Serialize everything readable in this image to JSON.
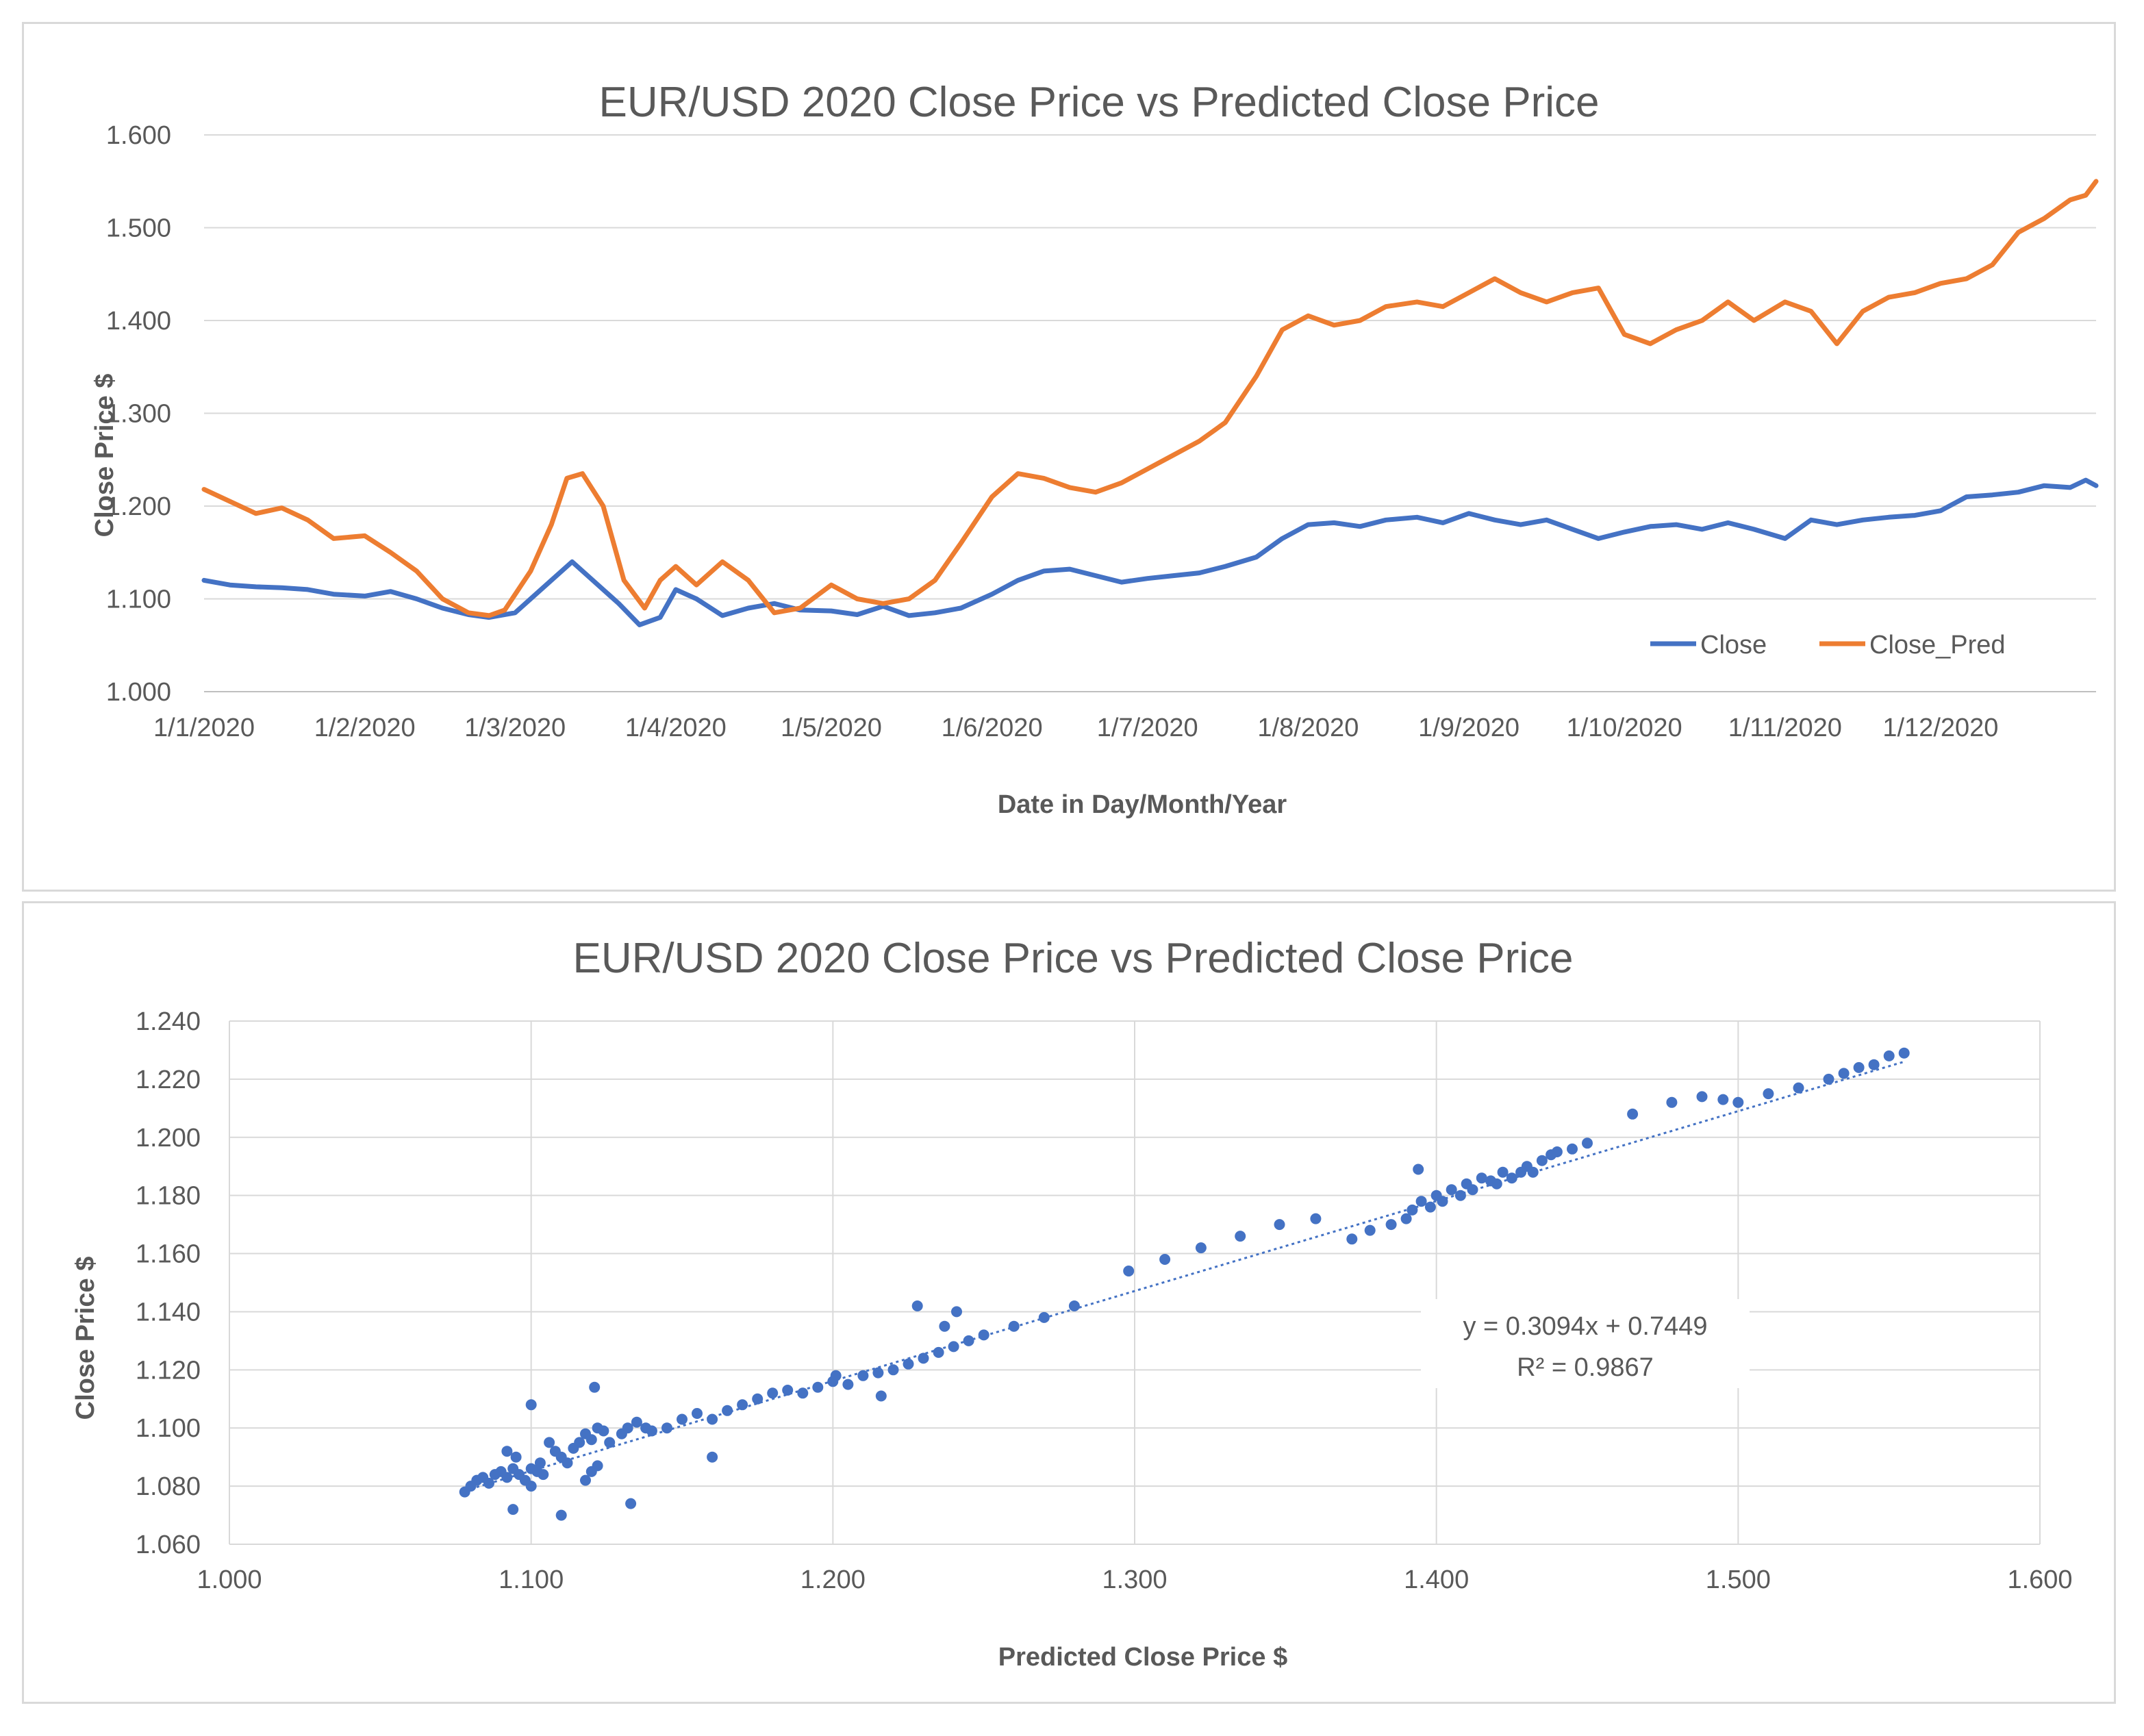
{
  "charts": [
    {
      "title": "EUR/USD 2020 Close Price vs Predicted Close Price",
      "xlabel": "Date in Day/Month/Year",
      "ylabel": "Close Price $",
      "ytick_labels": [
        "1.000",
        "1.100",
        "1.200",
        "1.300",
        "1.400",
        "1.500",
        "1.600"
      ],
      "xtick_labels": [
        "1/1/2020",
        "1/2/2020",
        "1/3/2020",
        "1/4/2020",
        "1/5/2020",
        "1/6/2020",
        "1/7/2020",
        "1/8/2020",
        "1/9/2020",
        "1/10/2020",
        "1/11/2020",
        "1/12/2020"
      ],
      "legend": [
        "Close",
        "Close_Pred"
      ]
    },
    {
      "title": "EUR/USD 2020 Close Price vs Predicted Close Price",
      "xlabel": "Predicted Close Price $",
      "ylabel": "Close Price $",
      "ytick_labels": [
        "1.060",
        "1.080",
        "1.100",
        "1.120",
        "1.140",
        "1.160",
        "1.180",
        "1.200",
        "1.220",
        "1.240"
      ],
      "xtick_labels": [
        "1.000",
        "1.100",
        "1.200",
        "1.300",
        "1.400",
        "1.500",
        "1.600"
      ],
      "equation": "y = 0.3094x + 0.7449",
      "r_squared": "R² = 0.9867"
    }
  ],
  "chart_data": [
    {
      "type": "line",
      "title": "EUR/USD 2020 Close Price vs Predicted Close Price",
      "xlabel": "Date in Day/Month/Year",
      "ylabel": "Close Price $",
      "x_range_days": [
        0,
        365
      ],
      "ylim": [
        1.0,
        1.6
      ],
      "grid": true,
      "legend_position": "bottom-right",
      "series": [
        {
          "name": "Close",
          "color": "#4472c4",
          "x": [
            0,
            5,
            10,
            15,
            20,
            25,
            31,
            36,
            41,
            46,
            51,
            55,
            60,
            63,
            67,
            71,
            76,
            80,
            84,
            88,
            91,
            95,
            100,
            105,
            110,
            115,
            121,
            126,
            131,
            136,
            141,
            146,
            152,
            157,
            162,
            167,
            172,
            177,
            182,
            187,
            192,
            197,
            203,
            208,
            213,
            218,
            223,
            228,
            234,
            239,
            244,
            249,
            254,
            259,
            264,
            269,
            274,
            279,
            284,
            289,
            294,
            299,
            305,
            310,
            315,
            320,
            325,
            330,
            335,
            340,
            345,
            350,
            355,
            360,
            363,
            365
          ],
          "y": [
            1.12,
            1.115,
            1.113,
            1.112,
            1.11,
            1.105,
            1.103,
            1.108,
            1.1,
            1.09,
            1.083,
            1.08,
            1.085,
            1.1,
            1.12,
            1.14,
            1.115,
            1.095,
            1.072,
            1.08,
            1.11,
            1.1,
            1.082,
            1.09,
            1.095,
            1.088,
            1.087,
            1.083,
            1.092,
            1.082,
            1.085,
            1.09,
            1.105,
            1.12,
            1.13,
            1.132,
            1.125,
            1.118,
            1.122,
            1.125,
            1.128,
            1.135,
            1.145,
            1.165,
            1.18,
            1.182,
            1.178,
            1.185,
            1.188,
            1.182,
            1.192,
            1.185,
            1.18,
            1.185,
            1.175,
            1.165,
            1.172,
            1.178,
            1.18,
            1.175,
            1.182,
            1.175,
            1.165,
            1.185,
            1.18,
            1.185,
            1.188,
            1.19,
            1.195,
            1.21,
            1.212,
            1.215,
            1.222,
            1.22,
            1.228,
            1.222
          ]
        },
        {
          "name": "Close_Pred",
          "color": "#ed7d31",
          "x": [
            0,
            5,
            10,
            15,
            20,
            25,
            31,
            36,
            41,
            46,
            51,
            55,
            58,
            63,
            67,
            70,
            73,
            77,
            81,
            85,
            88,
            91,
            95,
            100,
            105,
            110,
            115,
            121,
            126,
            131,
            136,
            141,
            146,
            152,
            157,
            162,
            167,
            172,
            177,
            182,
            187,
            192,
            197,
            203,
            208,
            213,
            218,
            223,
            228,
            234,
            239,
            244,
            249,
            254,
            259,
            264,
            269,
            274,
            279,
            284,
            289,
            294,
            299,
            305,
            310,
            315,
            320,
            325,
            330,
            335,
            340,
            345,
            350,
            355,
            360,
            363,
            365
          ],
          "y": [
            1.218,
            1.205,
            1.192,
            1.198,
            1.185,
            1.165,
            1.168,
            1.15,
            1.13,
            1.1,
            1.085,
            1.082,
            1.088,
            1.13,
            1.18,
            1.23,
            1.235,
            1.2,
            1.12,
            1.09,
            1.12,
            1.135,
            1.115,
            1.14,
            1.12,
            1.085,
            1.09,
            1.115,
            1.1,
            1.095,
            1.1,
            1.12,
            1.16,
            1.21,
            1.235,
            1.23,
            1.22,
            1.215,
            1.225,
            1.24,
            1.255,
            1.27,
            1.29,
            1.34,
            1.39,
            1.405,
            1.395,
            1.4,
            1.415,
            1.42,
            1.415,
            1.43,
            1.445,
            1.43,
            1.42,
            1.43,
            1.435,
            1.385,
            1.375,
            1.39,
            1.4,
            1.42,
            1.4,
            1.42,
            1.41,
            1.375,
            1.41,
            1.425,
            1.43,
            1.44,
            1.445,
            1.46,
            1.495,
            1.51,
            1.53,
            1.535,
            1.55
          ]
        }
      ]
    },
    {
      "type": "scatter",
      "title": "EUR/USD 2020 Close Price vs Predicted Close Price",
      "xlabel": "Predicted Close Price $",
      "ylabel": "Close Price $",
      "xlim": [
        1.0,
        1.6
      ],
      "ylim": [
        1.06,
        1.24
      ],
      "grid": true,
      "trendline": {
        "type": "linear",
        "slope": 0.3094,
        "intercept": 0.7449,
        "x_range": [
          1.078,
          1.555
        ],
        "equation": "y = 0.3094x + 0.7449",
        "r_squared": 0.9867
      },
      "point_color": "#4472c4",
      "points": {
        "x": [
          1.078,
          1.08,
          1.082,
          1.084,
          1.086,
          1.088,
          1.09,
          1.092,
          1.094,
          1.096,
          1.098,
          1.1,
          1.102,
          1.104,
          1.092,
          1.095,
          1.1,
          1.103,
          1.106,
          1.108,
          1.11,
          1.112,
          1.114,
          1.116,
          1.118,
          1.12,
          1.122,
          1.124,
          1.118,
          1.12,
          1.122,
          1.126,
          1.13,
          1.132,
          1.135,
          1.138,
          1.14,
          1.145,
          1.15,
          1.155,
          1.16,
          1.165,
          1.17,
          1.175,
          1.18,
          1.185,
          1.19,
          1.195,
          1.2,
          1.205,
          1.21,
          1.215,
          1.22,
          1.225,
          1.23,
          1.235,
          1.24,
          1.245,
          1.25,
          1.26,
          1.27,
          1.28,
          1.298,
          1.31,
          1.322,
          1.335,
          1.348,
          1.36,
          1.372,
          1.378,
          1.385,
          1.39,
          1.392,
          1.395,
          1.398,
          1.4,
          1.402,
          1.405,
          1.408,
          1.41,
          1.412,
          1.415,
          1.418,
          1.42,
          1.422,
          1.425,
          1.428,
          1.43,
          1.432,
          1.435,
          1.438,
          1.44,
          1.445,
          1.45,
          1.465,
          1.478,
          1.488,
          1.495,
          1.5,
          1.51,
          1.52,
          1.53,
          1.535,
          1.54,
          1.545,
          1.55,
          1.555,
          1.1,
          1.11,
          1.094,
          1.121,
          1.133,
          1.16,
          1.201,
          1.228,
          1.241,
          1.394,
          1.216,
          1.237
        ],
        "y": [
          1.078,
          1.08,
          1.082,
          1.083,
          1.081,
          1.084,
          1.085,
          1.083,
          1.086,
          1.084,
          1.082,
          1.086,
          1.085,
          1.084,
          1.092,
          1.09,
          1.08,
          1.088,
          1.095,
          1.092,
          1.09,
          1.088,
          1.093,
          1.095,
          1.098,
          1.096,
          1.1,
          1.099,
          1.082,
          1.085,
          1.087,
          1.095,
          1.098,
          1.1,
          1.102,
          1.1,
          1.099,
          1.1,
          1.103,
          1.105,
          1.103,
          1.106,
          1.108,
          1.11,
          1.112,
          1.113,
          1.112,
          1.114,
          1.116,
          1.115,
          1.118,
          1.119,
          1.12,
          1.122,
          1.124,
          1.126,
          1.128,
          1.13,
          1.132,
          1.135,
          1.138,
          1.142,
          1.154,
          1.158,
          1.162,
          1.166,
          1.17,
          1.172,
          1.165,
          1.168,
          1.17,
          1.172,
          1.175,
          1.178,
          1.176,
          1.18,
          1.178,
          1.182,
          1.18,
          1.184,
          1.182,
          1.186,
          1.185,
          1.184,
          1.188,
          1.186,
          1.188,
          1.19,
          1.188,
          1.192,
          1.194,
          1.195,
          1.196,
          1.198,
          1.208,
          1.212,
          1.214,
          1.213,
          1.212,
          1.215,
          1.217,
          1.22,
          1.222,
          1.224,
          1.225,
          1.228,
          1.229,
          1.108,
          1.07,
          1.072,
          1.114,
          1.074,
          1.09,
          1.118,
          1.142,
          1.14,
          1.189,
          1.111,
          1.135
        ]
      }
    }
  ]
}
